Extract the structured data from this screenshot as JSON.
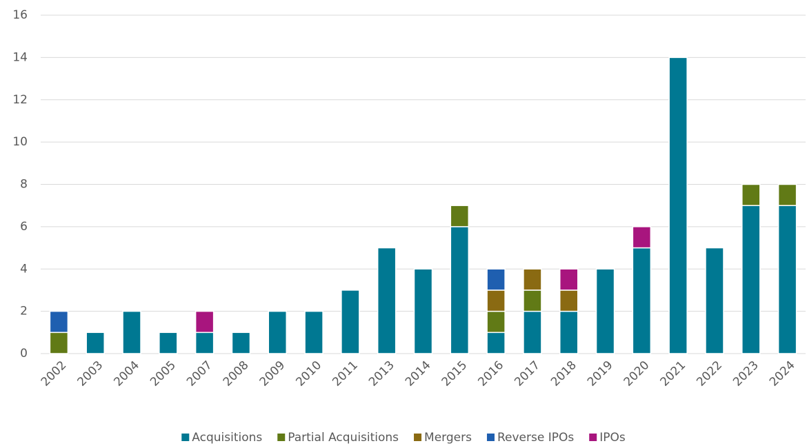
{
  "chart_data": {
    "type": "stacked_bar",
    "categories": [
      "2002",
      "2003",
      "2004",
      "2005",
      "2007",
      "2008",
      "2009",
      "2010",
      "2011",
      "2013",
      "2014",
      "2015",
      "2016",
      "2017",
      "2018",
      "2019",
      "2020",
      "2021",
      "2022",
      "2023",
      "2024"
    ],
    "series": [
      {
        "name": "Acquisitions",
        "color": "#007892",
        "values": [
          0,
          1,
          2,
          1,
          1,
          1,
          2,
          2,
          3,
          5,
          4,
          6,
          1,
          2,
          2,
          4,
          5,
          14,
          5,
          7,
          7
        ]
      },
      {
        "name": "Partial Acquisitions",
        "color": "#617a16",
        "values": [
          1,
          0,
          0,
          0,
          0,
          0,
          0,
          0,
          0,
          0,
          0,
          1,
          1,
          1,
          0,
          0,
          0,
          0,
          0,
          1,
          1
        ]
      },
      {
        "name": "Mergers",
        "color": "#8a6a12",
        "values": [
          0,
          0,
          0,
          0,
          0,
          0,
          0,
          0,
          0,
          0,
          0,
          0,
          1,
          1,
          1,
          0,
          0,
          0,
          0,
          0,
          0
        ]
      },
      {
        "name": "Reverse IPOs",
        "color": "#1f5fb0",
        "values": [
          1,
          0,
          0,
          0,
          0,
          0,
          0,
          0,
          0,
          0,
          0,
          0,
          1,
          0,
          0,
          0,
          0,
          0,
          0,
          0,
          0
        ]
      },
      {
        "name": "IPOs",
        "color": "#a8157e",
        "values": [
          0,
          0,
          0,
          0,
          1,
          0,
          0,
          0,
          0,
          0,
          0,
          0,
          0,
          0,
          1,
          0,
          1,
          0,
          0,
          0,
          0
        ]
      }
    ],
    "ylim": [
      0,
      16
    ],
    "yticks": [
      0,
      2,
      4,
      6,
      8,
      10,
      12,
      14,
      16
    ],
    "grid": true,
    "legend": "bottom"
  }
}
